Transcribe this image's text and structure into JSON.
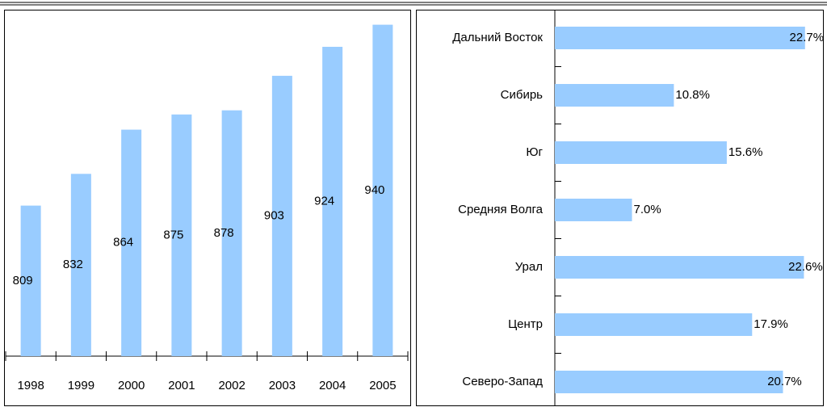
{
  "chart_data": [
    {
      "type": "bar",
      "categories": [
        "1998",
        "1999",
        "2000",
        "2001",
        "2002",
        "2003",
        "2004",
        "2005"
      ],
      "values": [
        809,
        832,
        864,
        875,
        878,
        903,
        924,
        940
      ],
      "color": "#99ccff",
      "ylim": [
        700,
        950
      ]
    },
    {
      "type": "barh",
      "categories": [
        "Дальний Восток",
        "Сибирь",
        "Юг",
        "Средняя Волга",
        "Урал",
        "Центр",
        "Северо-Запад"
      ],
      "values": [
        22.7,
        10.8,
        15.6,
        7.0,
        22.6,
        17.9,
        20.7
      ],
      "value_labels": [
        "22.7%",
        "10.8%",
        "15.6%",
        "7.0%",
        "22.6%",
        "17.9%",
        "20.7%"
      ],
      "color": "#99ccff",
      "xlim": [
        0,
        24.4
      ]
    }
  ]
}
